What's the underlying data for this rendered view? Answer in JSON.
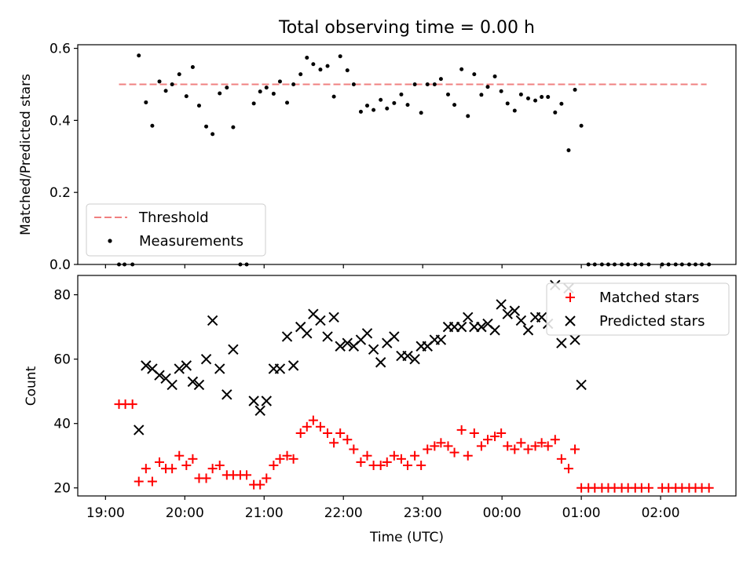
{
  "figure": {
    "title": "Total observing time = 0.00 h"
  },
  "chart_data": [
    {
      "type": "scatter",
      "title": "Total observing time = 0.00 h",
      "xlabel": "",
      "ylabel": "Matched/Predicted stars",
      "x_unit": "hours since 19:00 UTC",
      "xlim": [
        -0.35,
        7.95
      ],
      "ylim": [
        0.0,
        0.61
      ],
      "yticks": [
        0.0,
        0.2,
        0.4,
        0.6
      ],
      "ytick_labels": [
        "0.0",
        "0.2",
        "0.4",
        "0.6"
      ],
      "legend": {
        "placement": "lower-left",
        "entries": [
          "Threshold",
          "Measurements"
        ]
      },
      "series": [
        {
          "name": "Threshold",
          "kind": "dashed-line",
          "color": "#f08080",
          "x": [
            0.17,
            7.58
          ],
          "y": [
            0.5,
            0.5
          ]
        },
        {
          "name": "Measurements",
          "kind": "dots",
          "color": "#000000",
          "points": [
            [
              0.17,
              0.0
            ],
            [
              0.24,
              0.0
            ],
            [
              0.34,
              0.0
            ],
            [
              0.42,
              0.58
            ],
            [
              0.51,
              0.45
            ],
            [
              0.59,
              0.385
            ],
            [
              0.68,
              0.508
            ],
            [
              0.76,
              0.482
            ],
            [
              0.84,
              0.5
            ],
            [
              0.93,
              0.528
            ],
            [
              1.02,
              0.467
            ],
            [
              1.1,
              0.548
            ],
            [
              1.18,
              0.441
            ],
            [
              1.27,
              0.383
            ],
            [
              1.35,
              0.362
            ],
            [
              1.44,
              0.475
            ],
            [
              1.53,
              0.491
            ],
            [
              1.61,
              0.381
            ],
            [
              1.7,
              0.0
            ],
            [
              1.78,
              0.0
            ],
            [
              1.87,
              0.447
            ],
            [
              1.95,
              0.48
            ],
            [
              2.03,
              0.491
            ],
            [
              2.12,
              0.474
            ],
            [
              2.2,
              0.508
            ],
            [
              2.29,
              0.449
            ],
            [
              2.37,
              0.5
            ],
            [
              2.46,
              0.528
            ],
            [
              2.54,
              0.574
            ],
            [
              2.62,
              0.556
            ],
            [
              2.71,
              0.541
            ],
            [
              2.8,
              0.551
            ],
            [
              2.88,
              0.466
            ],
            [
              2.96,
              0.578
            ],
            [
              3.05,
              0.539
            ],
            [
              3.13,
              0.5
            ],
            [
              3.22,
              0.424
            ],
            [
              3.3,
              0.441
            ],
            [
              3.38,
              0.429
            ],
            [
              3.47,
              0.457
            ],
            [
              3.55,
              0.433
            ],
            [
              3.64,
              0.448
            ],
            [
              3.73,
              0.472
            ],
            [
              3.81,
              0.443
            ],
            [
              3.9,
              0.5
            ],
            [
              3.98,
              0.421
            ],
            [
              4.06,
              0.5
            ],
            [
              4.15,
              0.5
            ],
            [
              4.23,
              0.515
            ],
            [
              4.32,
              0.472
            ],
            [
              4.4,
              0.443
            ],
            [
              4.49,
              0.542
            ],
            [
              4.57,
              0.412
            ],
            [
              4.65,
              0.528
            ],
            [
              4.74,
              0.471
            ],
            [
              4.82,
              0.493
            ],
            [
              4.91,
              0.522
            ],
            [
              4.99,
              0.481
            ],
            [
              5.07,
              0.447
            ],
            [
              5.16,
              0.427
            ],
            [
              5.24,
              0.472
            ],
            [
              5.33,
              0.461
            ],
            [
              5.42,
              0.455
            ],
            [
              5.5,
              0.465
            ],
            [
              5.58,
              0.465
            ],
            [
              5.67,
              0.422
            ],
            [
              5.75,
              0.446
            ],
            [
              5.84,
              0.317
            ],
            [
              5.92,
              0.485
            ],
            [
              6.0,
              0.385
            ],
            [
              6.09,
              0.0
            ],
            [
              6.17,
              0.0
            ],
            [
              6.26,
              0.0
            ],
            [
              6.34,
              0.0
            ],
            [
              6.42,
              0.0
            ],
            [
              6.51,
              0.0
            ],
            [
              6.59,
              0.0
            ],
            [
              6.68,
              0.0
            ],
            [
              6.76,
              0.0
            ],
            [
              6.85,
              0.0
            ],
            [
              7.02,
              0.0
            ],
            [
              7.1,
              0.0
            ],
            [
              7.19,
              0.0
            ],
            [
              7.27,
              0.0
            ],
            [
              7.36,
              0.0
            ],
            [
              7.44,
              0.0
            ],
            [
              7.52,
              0.0
            ],
            [
              7.61,
              0.0
            ]
          ]
        }
      ]
    },
    {
      "type": "scatter",
      "title": "",
      "xlabel": "Time (UTC)",
      "ylabel": "Count",
      "x_unit": "hours since 19:00 UTC",
      "xlim": [
        -0.35,
        7.95
      ],
      "ylim": [
        17.5,
        86
      ],
      "yticks": [
        20,
        40,
        60,
        80
      ],
      "ytick_labels": [
        "20",
        "40",
        "60",
        "80"
      ],
      "xticks": [
        0,
        1,
        2,
        3,
        4,
        5,
        6,
        7
      ],
      "xtick_labels": [
        "19:00",
        "20:00",
        "21:00",
        "22:00",
        "23:00",
        "00:00",
        "01:00",
        "02:00"
      ],
      "legend": {
        "placement": "top-right",
        "entries": [
          "Matched stars",
          "Predicted stars"
        ]
      },
      "series": [
        {
          "name": "Matched stars",
          "kind": "plus",
          "color": "#ff0000",
          "points": [
            [
              0.17,
              46
            ],
            [
              0.25,
              46
            ],
            [
              0.34,
              46
            ],
            [
              0.42,
              22
            ],
            [
              0.51,
              26
            ],
            [
              0.59,
              22
            ],
            [
              0.68,
              28
            ],
            [
              0.76,
              26
            ],
            [
              0.84,
              26
            ],
            [
              0.93,
              30
            ],
            [
              1.02,
              27
            ],
            [
              1.1,
              29
            ],
            [
              1.18,
              23
            ],
            [
              1.27,
              23
            ],
            [
              1.35,
              26
            ],
            [
              1.44,
              27
            ],
            [
              1.53,
              24
            ],
            [
              1.61,
              24
            ],
            [
              1.7,
              24
            ],
            [
              1.78,
              24
            ],
            [
              1.87,
              21
            ],
            [
              1.95,
              21
            ],
            [
              2.03,
              23
            ],
            [
              2.12,
              27
            ],
            [
              2.2,
              29
            ],
            [
              2.29,
              30
            ],
            [
              2.37,
              29
            ],
            [
              2.46,
              37
            ],
            [
              2.54,
              39
            ],
            [
              2.62,
              41
            ],
            [
              2.71,
              39
            ],
            [
              2.8,
              37
            ],
            [
              2.88,
              34
            ],
            [
              2.96,
              37
            ],
            [
              3.05,
              35
            ],
            [
              3.13,
              32
            ],
            [
              3.22,
              28
            ],
            [
              3.3,
              30
            ],
            [
              3.38,
              27
            ],
            [
              3.47,
              27
            ],
            [
              3.55,
              28
            ],
            [
              3.64,
              30
            ],
            [
              3.73,
              29
            ],
            [
              3.81,
              27
            ],
            [
              3.9,
              30
            ],
            [
              3.98,
              27
            ],
            [
              4.06,
              32
            ],
            [
              4.15,
              33
            ],
            [
              4.23,
              34
            ],
            [
              4.32,
              33
            ],
            [
              4.4,
              31
            ],
            [
              4.49,
              38
            ],
            [
              4.57,
              30
            ],
            [
              4.65,
              37
            ],
            [
              4.74,
              33
            ],
            [
              4.82,
              35
            ],
            [
              4.91,
              36
            ],
            [
              4.99,
              37
            ],
            [
              5.07,
              33
            ],
            [
              5.16,
              32
            ],
            [
              5.24,
              34
            ],
            [
              5.33,
              32
            ],
            [
              5.42,
              33
            ],
            [
              5.5,
              34
            ],
            [
              5.58,
              33
            ],
            [
              5.67,
              35
            ],
            [
              5.75,
              29
            ],
            [
              5.84,
              26
            ],
            [
              5.92,
              32
            ],
            [
              6.0,
              20
            ],
            [
              6.09,
              20
            ],
            [
              6.17,
              20
            ],
            [
              6.26,
              20
            ],
            [
              6.34,
              20
            ],
            [
              6.42,
              20
            ],
            [
              6.51,
              20
            ],
            [
              6.59,
              20
            ],
            [
              6.68,
              20
            ],
            [
              6.76,
              20
            ],
            [
              6.85,
              20
            ],
            [
              7.02,
              20
            ],
            [
              7.1,
              20
            ],
            [
              7.19,
              20
            ],
            [
              7.27,
              20
            ],
            [
              7.36,
              20
            ],
            [
              7.44,
              20
            ],
            [
              7.52,
              20
            ],
            [
              7.61,
              20
            ]
          ]
        },
        {
          "name": "Predicted stars",
          "kind": "cross",
          "color": "#000000",
          "points": [
            [
              0.42,
              38
            ],
            [
              0.51,
              58
            ],
            [
              0.59,
              57
            ],
            [
              0.68,
              55
            ],
            [
              0.76,
              54
            ],
            [
              0.84,
              52
            ],
            [
              0.93,
              57
            ],
            [
              1.02,
              58
            ],
            [
              1.1,
              53
            ],
            [
              1.18,
              52
            ],
            [
              1.27,
              60
            ],
            [
              1.35,
              72
            ],
            [
              1.44,
              57
            ],
            [
              1.53,
              49
            ],
            [
              1.61,
              63
            ],
            [
              1.87,
              47
            ],
            [
              1.95,
              44
            ],
            [
              2.03,
              47
            ],
            [
              2.12,
              57
            ],
            [
              2.2,
              57
            ],
            [
              2.29,
              67
            ],
            [
              2.37,
              58
            ],
            [
              2.46,
              70
            ],
            [
              2.54,
              68
            ],
            [
              2.62,
              74
            ],
            [
              2.71,
              72
            ],
            [
              2.8,
              67
            ],
            [
              2.88,
              73
            ],
            [
              2.96,
              64
            ],
            [
              3.05,
              65
            ],
            [
              3.13,
              64
            ],
            [
              3.22,
              66
            ],
            [
              3.3,
              68
            ],
            [
              3.38,
              63
            ],
            [
              3.47,
              59
            ],
            [
              3.55,
              65
            ],
            [
              3.64,
              67
            ],
            [
              3.73,
              61
            ],
            [
              3.81,
              61
            ],
            [
              3.9,
              60
            ],
            [
              3.98,
              64
            ],
            [
              4.06,
              64
            ],
            [
              4.15,
              66
            ],
            [
              4.23,
              66
            ],
            [
              4.32,
              70
            ],
            [
              4.4,
              70
            ],
            [
              4.49,
              70
            ],
            [
              4.57,
              73
            ],
            [
              4.65,
              70
            ],
            [
              4.74,
              70
            ],
            [
              4.82,
              71
            ],
            [
              4.91,
              69
            ],
            [
              4.99,
              77
            ],
            [
              5.07,
              74
            ],
            [
              5.16,
              75
            ],
            [
              5.24,
              72
            ],
            [
              5.33,
              69
            ],
            [
              5.42,
              73
            ],
            [
              5.5,
              73
            ],
            [
              5.58,
              71
            ],
            [
              5.67,
              83
            ],
            [
              5.75,
              65
            ],
            [
              5.84,
              82
            ],
            [
              5.92,
              66
            ],
            [
              6.0,
              52
            ]
          ]
        }
      ]
    }
  ]
}
